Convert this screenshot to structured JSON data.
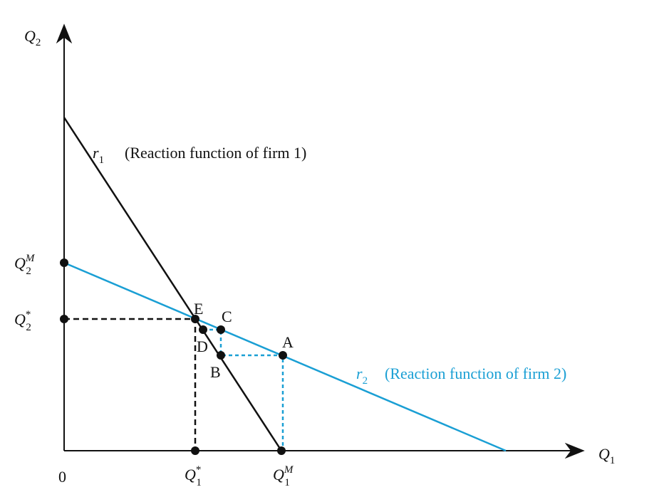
{
  "axes": {
    "y_label": {
      "main": "Q",
      "sub": "2"
    },
    "x_label": {
      "main": "Q",
      "sub": "1"
    },
    "origin": "0"
  },
  "y_marks": {
    "monopoly": {
      "main": "Q",
      "sup": "M",
      "sub": "2"
    },
    "equilibrium": {
      "main": "Q",
      "sup": "*",
      "sub": "2"
    }
  },
  "x_marks": {
    "equilibrium": {
      "main": "Q",
      "sup": "*",
      "sub": "1"
    },
    "monopoly": {
      "main": "Q",
      "sup": "M",
      "sub": "1"
    }
  },
  "curves": {
    "r1": {
      "main": "r",
      "sub": "1",
      "description": "(Reaction function of firm 1)"
    },
    "r2": {
      "main": "r",
      "sub": "2",
      "description": "(Reaction function of firm 2)"
    }
  },
  "points": {
    "E": "E",
    "C": "C",
    "D": "D",
    "B": "B",
    "A": "A"
  }
}
